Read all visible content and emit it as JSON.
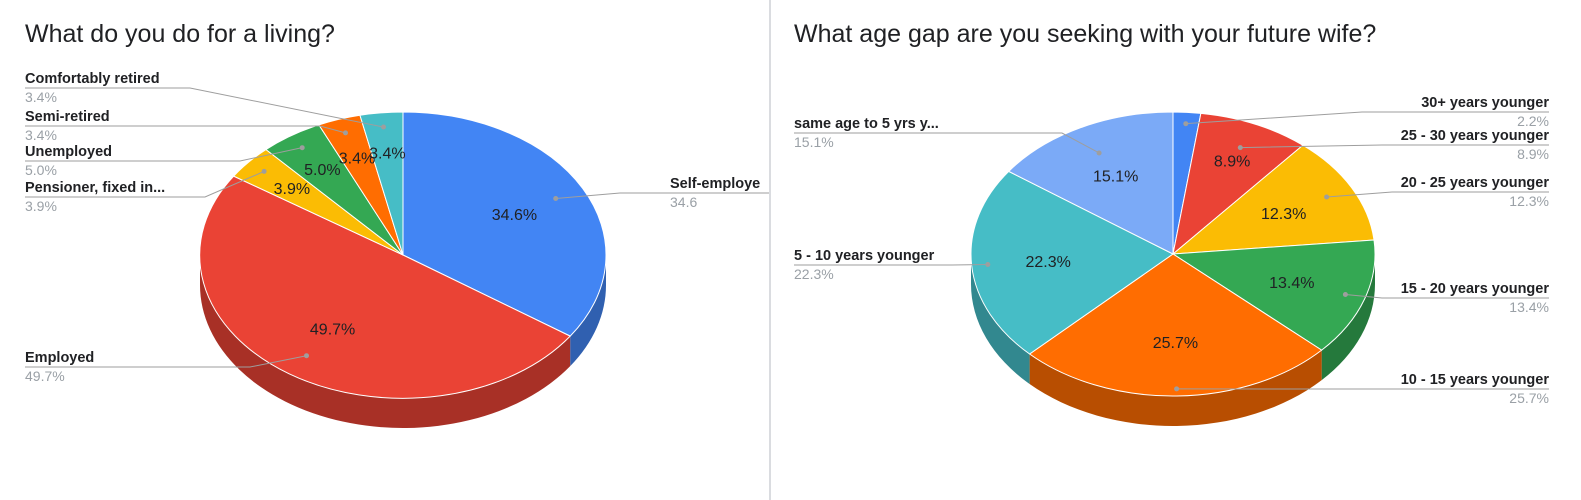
{
  "chart_data": [
    {
      "type": "pie",
      "title": "What do you do for a living?",
      "categories": [
        "Self-employed",
        "Employed",
        "Pensioner, fixed in...",
        "Unemployed",
        "Semi-retired",
        "Comfortably retired"
      ],
      "label_text": [
        "Self-employe",
        "Employed",
        "Pensioner, fixed in...",
        "Unemployed",
        "Semi-retired",
        "Comfortably retired"
      ],
      "values": [
        34.6,
        49.7,
        3.9,
        5.0,
        3.4,
        3.4
      ],
      "value_labels": [
        "34.6%",
        "49.7%",
        "3.9%",
        "5.0%",
        "3.4%",
        "3.4%"
      ],
      "legend_value_labels": [
        "34.6",
        "49.7%",
        "3.9%",
        "5.0%",
        "3.4%",
        "3.4%"
      ],
      "colors": [
        "#4285f4",
        "#ea4335",
        "#fbbc04",
        "#34a853",
        "#ff6d01",
        "#46bdc6"
      ],
      "legend": "labeled",
      "style": "3d"
    },
    {
      "type": "pie",
      "title": "What age gap are you seeking with your future wife?",
      "categories": [
        "30+ years younger",
        "25 - 30 years younger",
        "20 - 25 years younger",
        "15 - 20 years younger",
        "10 - 15 years younger",
        "5 - 10 years younger",
        "same age to 5 yrs y..."
      ],
      "label_text": [
        "30+ years younger",
        "25 - 30 years younger",
        "20 - 25 years younger",
        "15 - 20 years younger",
        "10 - 15 years younger",
        "5 - 10 years younger",
        "same age to 5 yrs y..."
      ],
      "values": [
        2.2,
        8.9,
        12.3,
        13.4,
        25.7,
        22.3,
        15.1
      ],
      "value_labels": [
        "",
        "8.9%",
        "12.3%",
        "13.4%",
        "25.7%",
        "22.3%",
        "15.1%"
      ],
      "legend_value_labels": [
        "2.2%",
        "8.9%",
        "12.3%",
        "13.4%",
        "25.7%",
        "22.3%",
        "15.1%"
      ],
      "colors": [
        "#4285f4",
        "#ea4335",
        "#fbbc04",
        "#34a853",
        "#ff6d01",
        "#46bdc6",
        "#7baaf7"
      ],
      "legend": "labeled",
      "style": "3d"
    }
  ]
}
